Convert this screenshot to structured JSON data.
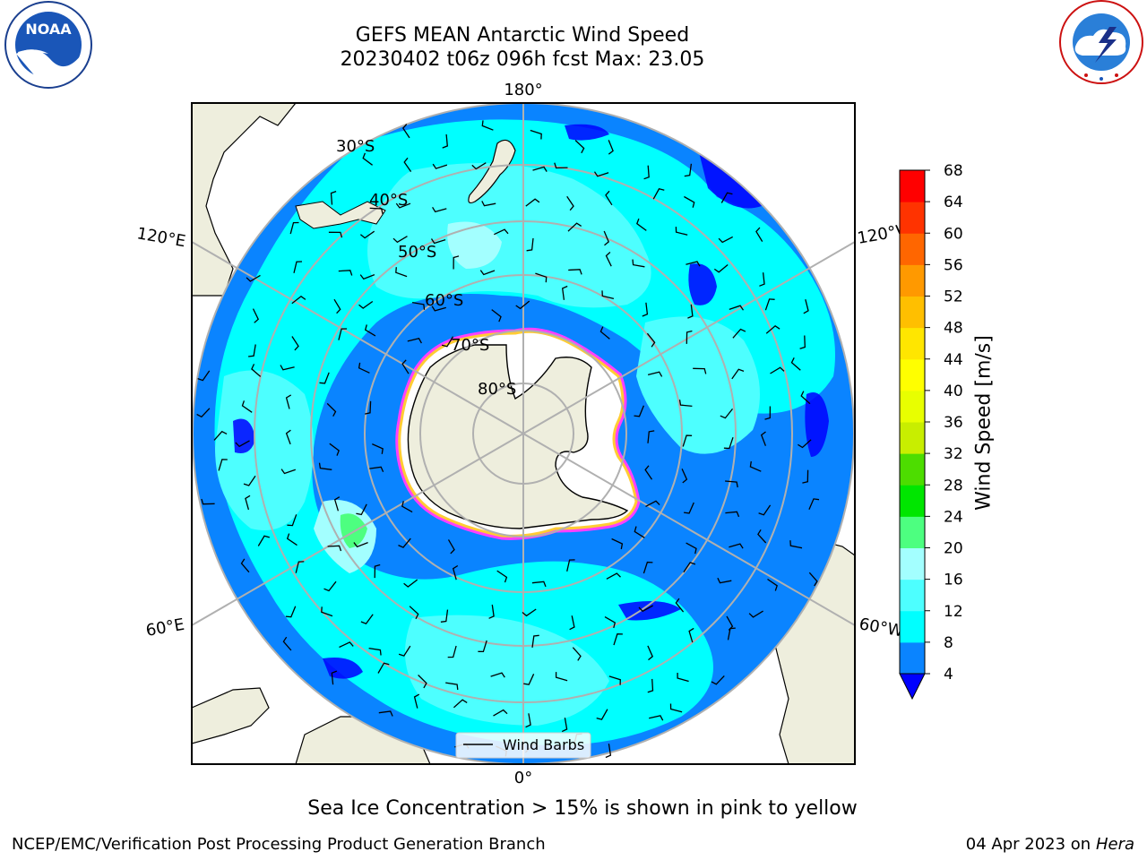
{
  "title": {
    "line1": "GEFS MEAN Antarctic Wind Speed",
    "line2": "20230402 t06z 096h fcst   Max: 23.05"
  },
  "logos": {
    "left": {
      "name": "NOAA",
      "text": "NOAA",
      "ring": "NATIONAL OCEANIC AND ATMOSPHERIC ADMINISTRATION · U.S. DEPARTMENT OF COMMERCE"
    },
    "right": {
      "name": "National Weather Service",
      "ring": "NATIONAL WEATHER SERVICE"
    }
  },
  "map": {
    "projection": "south-polar-stereographic",
    "longitude_labels": {
      "top": "180°",
      "bottom": "0°",
      "upper_left": "120°E",
      "upper_right": "120°W",
      "lower_left": "60°E",
      "lower_right": "60°W"
    },
    "latitude_labels": [
      "30°S",
      "40°S",
      "50°S",
      "60°S",
      "70°S",
      "80°S"
    ],
    "legend": {
      "label": "Wind Barbs"
    },
    "ocean_color": "#1f78f0",
    "land_color": "#eeeedd"
  },
  "colorbar": {
    "label": "Wind Speed [m/s]",
    "ticks": [
      "4",
      "8",
      "12",
      "16",
      "20",
      "24",
      "28",
      "32",
      "36",
      "40",
      "44",
      "48",
      "52",
      "56",
      "60",
      "64",
      "68"
    ],
    "colors": [
      "#0a84ff",
      "#00ffff",
      "#4dffff",
      "#a3ffff",
      "#4dff80",
      "#00e600",
      "#4ddd00",
      "#c8ee00",
      "#e8ff00",
      "#ffff00",
      "#ffe600",
      "#ffbf00",
      "#ff9900",
      "#ff6600",
      "#ff3300",
      "#ff0000"
    ],
    "under_color": "#0000ff"
  },
  "caption": "Sea Ice Concentration > 15% is shown in pink to yellow",
  "footer": {
    "left": "NCEP/EMC/Verification Post Processing Product Generation Branch",
    "right_date": "04 Apr 2023 on ",
    "right_host": "Hera"
  }
}
